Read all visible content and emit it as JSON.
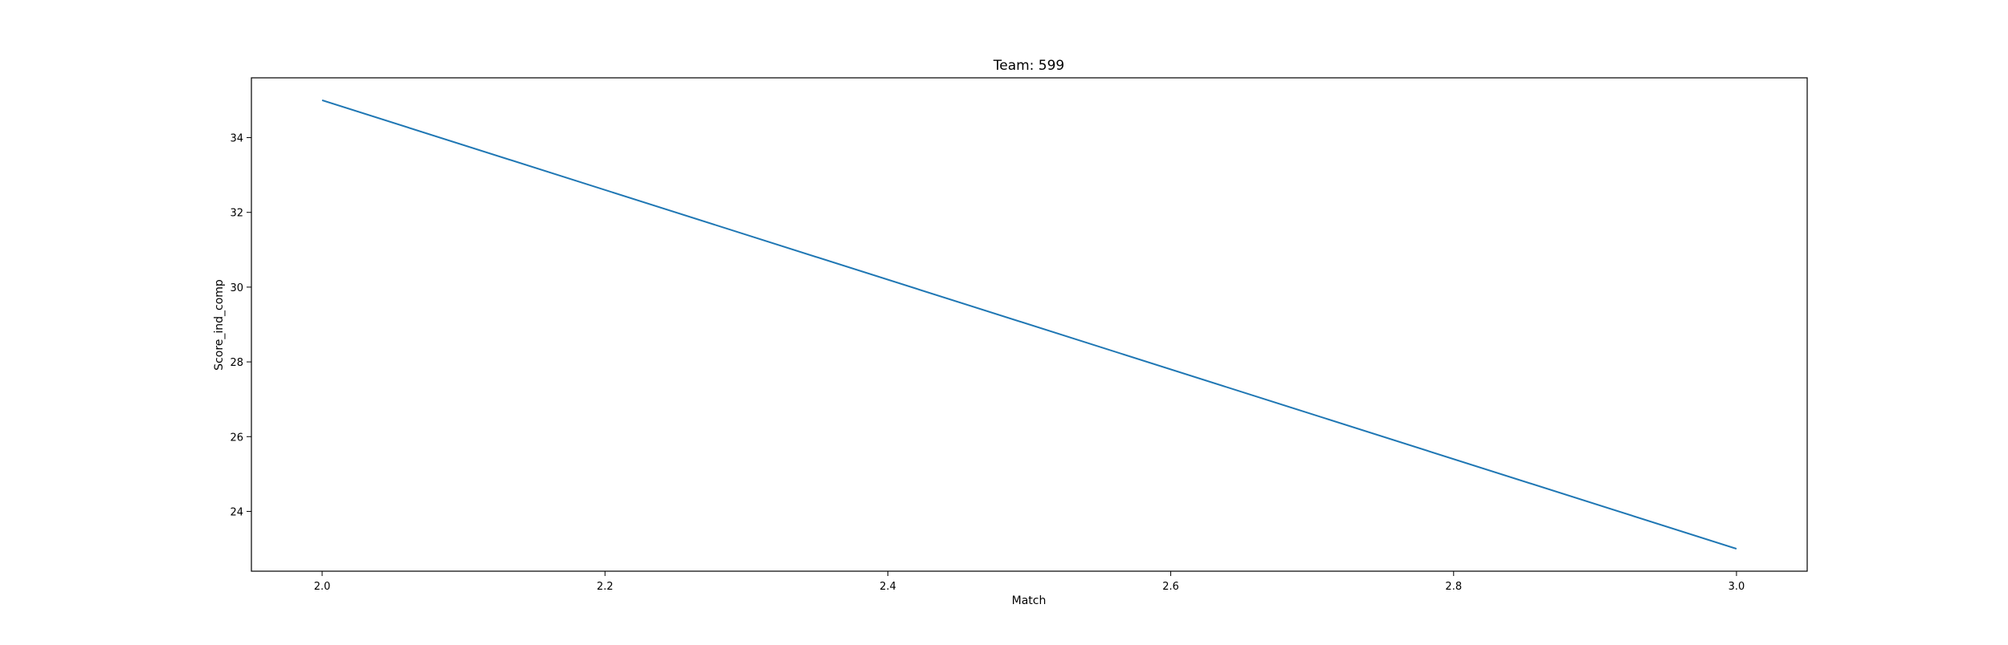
{
  "chart_data": {
    "type": "line",
    "title": "Team: 599",
    "xlabel": "Match",
    "ylabel": "Score_ind_comp",
    "x": [
      2.0,
      3.0
    ],
    "series": [
      {
        "values": [
          35,
          23
        ],
        "color": "#1f77b4"
      }
    ],
    "xlim": [
      1.95,
      3.05
    ],
    "ylim": [
      22.4,
      35.6
    ],
    "xticks": [
      2.0,
      2.2,
      2.4,
      2.6,
      2.8,
      3.0
    ],
    "xtick_labels": [
      "2.0",
      "2.2",
      "2.4",
      "2.6",
      "2.8",
      "3.0"
    ],
    "yticks": [
      24,
      26,
      28,
      30,
      32,
      34
    ],
    "ytick_labels": [
      "24",
      "26",
      "28",
      "30",
      "32",
      "34"
    ],
    "grid": false,
    "legend": false
  }
}
